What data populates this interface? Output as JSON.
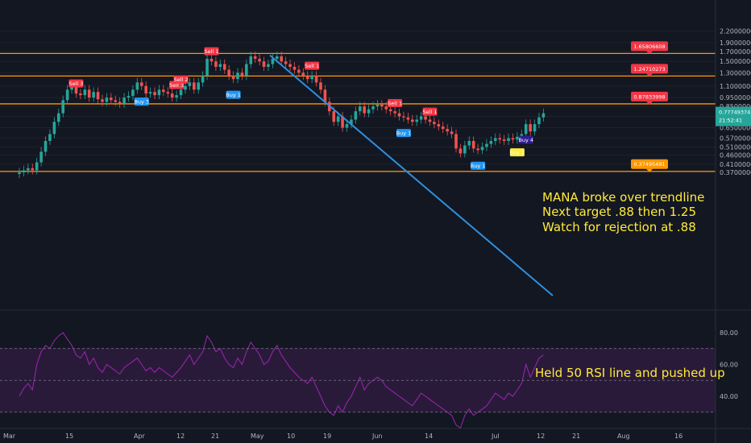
{
  "chart_data": {
    "type": "candlestick",
    "symbol": "MANA",
    "price_scale": "log",
    "price_axis": {
      "ticks": [
        "2.20000000",
        "1.90000000",
        "1.70000000",
        "1.50000000",
        "1.30000000",
        "1.10000000",
        "0.95000000",
        "0.85000000",
        "0.75000000",
        "0.65000000",
        "0.57000000",
        "0.51000000",
        "0.46000000",
        "0.41000000",
        "0.37000000"
      ]
    },
    "rsi_axis": {
      "ticks": [
        "80.00",
        "60.00",
        "40.00"
      ],
      "band": [
        30,
        70
      ],
      "midline": 50
    },
    "x_ticks": [
      "Mar",
      "15",
      "Apr",
      "12",
      "21",
      "May",
      "10",
      "19",
      "Jun",
      "14",
      "Jul",
      "12",
      "21",
      "Aug",
      "16"
    ],
    "horizontal_levels": [
      {
        "value": 1.65806608,
        "label": "1.65806608",
        "color": "#ff9800",
        "label_bg": "#f23645"
      },
      {
        "value": 1.24710273,
        "label": "1.24710273",
        "color": "#ff9800",
        "label_bg": "#f23645"
      },
      {
        "value": 0.87833998,
        "label": "0.87833998",
        "color": "#ff9800",
        "label_bg": "#f23645"
      },
      {
        "value": 0.37495491,
        "label": "0.37495491",
        "color": "#ff9800",
        "label_bg": "#ff9800"
      }
    ],
    "current_price": {
      "label": "0.77749374",
      "countdown": "21:52:41",
      "color": "#26a69a"
    },
    "trendline": {
      "from": {
        "date": "May 8",
        "price": 1.6
      },
      "to": {
        "date": "Jul 18",
        "price": 0.38
      },
      "color": "#2f8fdd"
    },
    "closes": [
      0.37,
      0.38,
      0.39,
      0.38,
      0.42,
      0.48,
      0.55,
      0.6,
      0.7,
      0.78,
      0.92,
      1.05,
      1.1,
      1.0,
      0.98,
      1.05,
      0.95,
      1.02,
      0.93,
      0.9,
      0.95,
      0.92,
      0.9,
      0.88,
      0.95,
      0.97,
      1.05,
      1.15,
      1.1,
      1.0,
      1.02,
      0.98,
      1.05,
      1.02,
      1.0,
      0.95,
      0.98,
      1.05,
      1.1,
      1.15,
      1.05,
      1.15,
      1.25,
      1.55,
      1.5,
      1.4,
      1.45,
      1.35,
      1.25,
      1.2,
      1.3,
      1.25,
      1.45,
      1.6,
      1.55,
      1.5,
      1.4,
      1.45,
      1.55,
      1.6,
      1.5,
      1.45,
      1.4,
      1.35,
      1.3,
      1.25,
      1.2,
      1.25,
      1.15,
      1.05,
      0.9,
      0.8,
      0.7,
      0.75,
      0.65,
      0.68,
      0.72,
      0.8,
      0.85,
      0.78,
      0.82,
      0.85,
      0.87,
      0.85,
      0.82,
      0.8,
      0.78,
      0.75,
      0.74,
      0.72,
      0.7,
      0.72,
      0.75,
      0.72,
      0.7,
      0.68,
      0.66,
      0.64,
      0.62,
      0.6,
      0.5,
      0.47,
      0.52,
      0.55,
      0.5,
      0.49,
      0.51,
      0.53,
      0.55,
      0.57,
      0.56,
      0.55,
      0.57,
      0.56,
      0.58,
      0.6,
      0.68,
      0.62,
      0.68,
      0.74,
      0.78
    ],
    "rsi": [
      40,
      45,
      48,
      44,
      60,
      68,
      72,
      70,
      75,
      78,
      80,
      76,
      72,
      66,
      64,
      68,
      60,
      64,
      58,
      55,
      60,
      58,
      56,
      54,
      58,
      60,
      62,
      64,
      60,
      56,
      58,
      55,
      58,
      56,
      54,
      52,
      55,
      58,
      62,
      66,
      60,
      64,
      68,
      78,
      74,
      68,
      70,
      64,
      60,
      58,
      64,
      60,
      68,
      74,
      70,
      66,
      60,
      62,
      68,
      72,
      66,
      62,
      58,
      55,
      52,
      50,
      48,
      52,
      46,
      40,
      34,
      30,
      28,
      34,
      30,
      36,
      40,
      46,
      52,
      44,
      48,
      50,
      52,
      50,
      46,
      44,
      42,
      40,
      38,
      36,
      34,
      38,
      42,
      40,
      38,
      36,
      34,
      32,
      30,
      28,
      22,
      20,
      28,
      32,
      28,
      30,
      32,
      34,
      38,
      42,
      40,
      38,
      42,
      40,
      44,
      48,
      60,
      52,
      58,
      64,
      66
    ],
    "signals": [
      {
        "text": "Sell 3",
        "i": 13,
        "type": "sell"
      },
      {
        "text": "Buy 3",
        "i": 28,
        "type": "buy"
      },
      {
        "text": "Sell 3",
        "i": 36,
        "type": "sell"
      },
      {
        "text": "Sell 2",
        "i": 37,
        "type": "sell"
      },
      {
        "text": "Sell 1",
        "i": 44,
        "type": "sell"
      },
      {
        "text": "Buy 1",
        "i": 49,
        "type": "buy"
      },
      {
        "text": "Sell 1",
        "i": 67,
        "type": "sell"
      },
      {
        "text": "Sell 1",
        "i": 86,
        "type": "sell"
      },
      {
        "text": "Buy 1",
        "i": 88,
        "type": "buy"
      },
      {
        "text": "Sell 1",
        "i": 94,
        "type": "sell"
      },
      {
        "text": "Buy 1",
        "i": 105,
        "type": "buy"
      },
      {
        "text": "Buy 2",
        "i": 114,
        "type": "buy2"
      },
      {
        "text": "Buy 4",
        "i": 116,
        "type": "buy4"
      }
    ]
  },
  "annotations": {
    "line1": "MANA broke over trendline",
    "line2": "Next target .88 then 1.25",
    "line3": "Watch for rejection at .88",
    "rsi_note": "Held 50 RSI line and pushed up"
  },
  "colors": {
    "background": "#131722",
    "up": "#26a69a",
    "down": "#ef5350",
    "level": "#ff9800",
    "rsi_line": "#9c27b0",
    "rsi_band": "#2a1a3a",
    "annotation": "#ffeb3b"
  }
}
